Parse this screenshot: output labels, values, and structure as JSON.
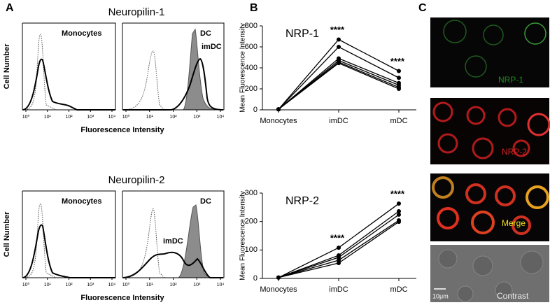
{
  "panels": {
    "a": "A",
    "b": "B",
    "c": "C"
  },
  "flow": {
    "xticks": [
      "10⁰",
      "10¹",
      "10²",
      "10³",
      "10⁴"
    ],
    "rows": [
      {
        "title": "Neuropilin-1",
        "ylabel": "Cell Number",
        "xlabel": "Fluorescence Intensity",
        "left_label": "Monocytes",
        "right_labels": [
          "DC",
          "imDC"
        ]
      },
      {
        "title": "Neuropilin-2",
        "ylabel": "Cell Number",
        "xlabel": "Fluorescence Intensity",
        "left_label": "Monocytes",
        "right_labels": [
          "DC",
          "imDC"
        ]
      }
    ]
  },
  "chart_data": [
    {
      "type": "line",
      "title": "NRP-1",
      "ylabel": "Mean Fluorescence Intensity",
      "categories": [
        "Monocytes",
        "imDC",
        "mDC"
      ],
      "ylim": [
        0,
        800
      ],
      "yticks": [
        0,
        200,
        400,
        600,
        800
      ],
      "annotations": [
        "****",
        "****"
      ],
      "series": [
        {
          "color": "#000000",
          "values": [
            5,
            670,
            370
          ]
        },
        {
          "color": "#000000",
          "values": [
            5,
            600,
            305
          ]
        },
        {
          "color": "#000000",
          "values": [
            5,
            490,
            255
          ]
        },
        {
          "color": "#000000",
          "values": [
            5,
            470,
            235
          ]
        },
        {
          "color": "#000000",
          "values": [
            5,
            455,
            215
          ]
        },
        {
          "color": "#000000",
          "values": [
            5,
            445,
            200
          ]
        }
      ]
    },
    {
      "type": "line",
      "title": "NRP-2",
      "ylabel": "Mean Fluorescence Intensity",
      "categories": [
        "Monocytes",
        "imDC",
        "mDC"
      ],
      "ylim": [
        0,
        300
      ],
      "yticks": [
        0,
        100,
        200,
        300
      ],
      "annotations": [
        "****",
        "****"
      ],
      "series": [
        {
          "color": "#000000",
          "values": [
            3,
            108,
            263
          ]
        },
        {
          "color": "#000000",
          "values": [
            3,
            81,
            236
          ]
        },
        {
          "color": "#000000",
          "values": [
            3,
            74,
            224
          ]
        },
        {
          "color": "#000000",
          "values": [
            3,
            64,
            204
          ]
        },
        {
          "color": "#000000",
          "values": [
            3,
            54,
            199
          ]
        }
      ]
    }
  ],
  "images": {
    "labels": [
      "NRP-1",
      "NRP-2",
      "Merge",
      "Contrast"
    ],
    "scale": "10μm"
  }
}
